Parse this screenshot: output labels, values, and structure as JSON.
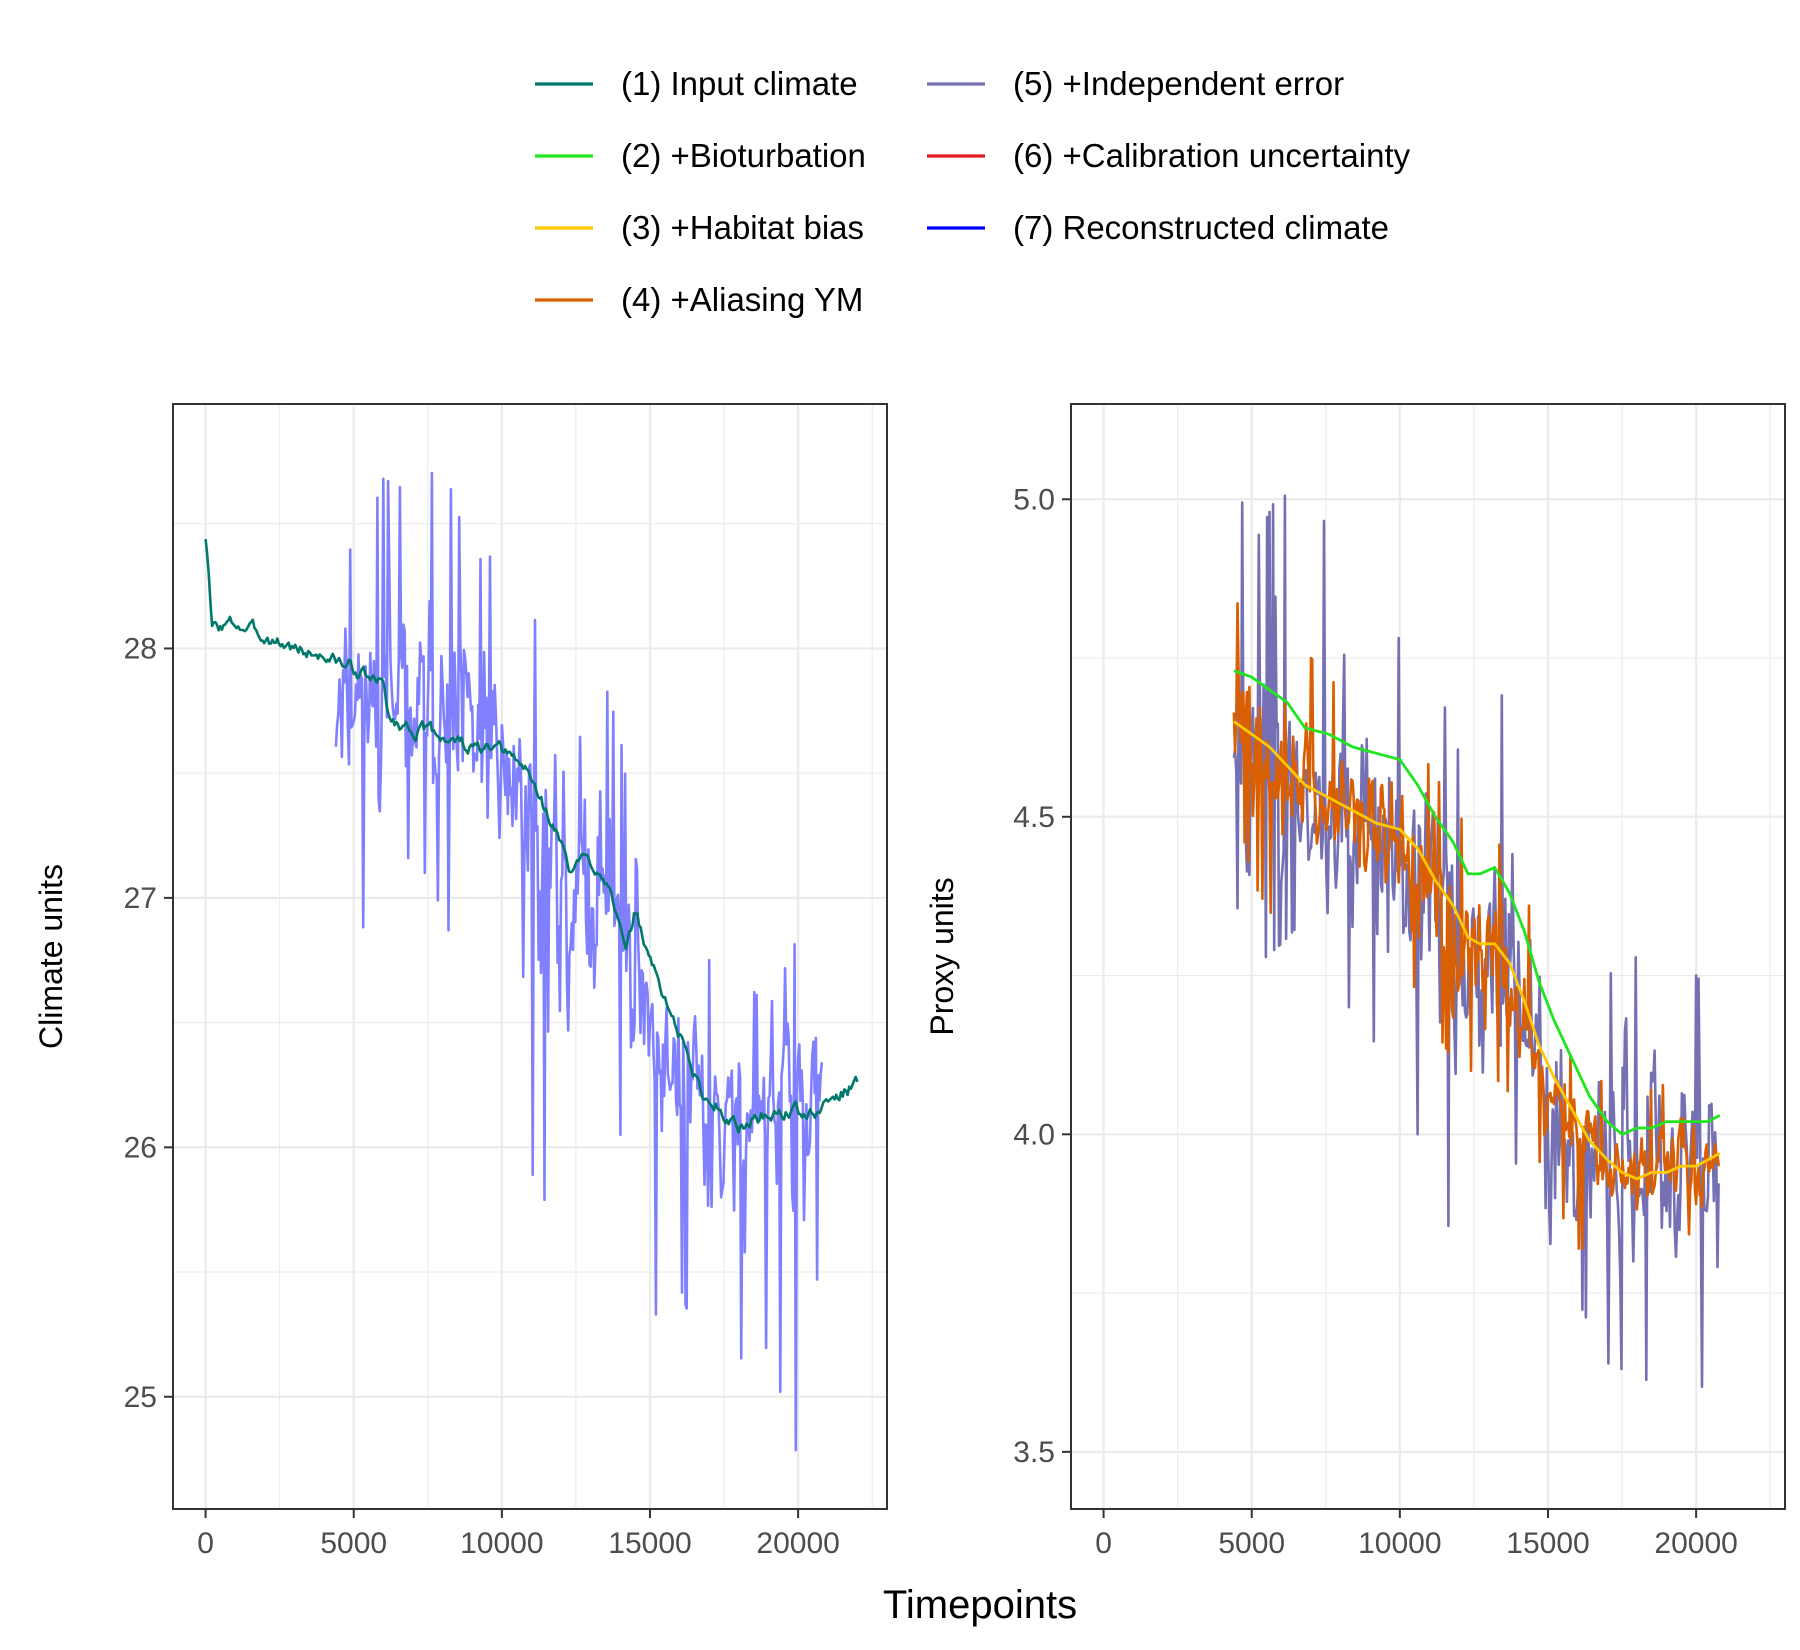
{
  "figure": {
    "shared_xlabel": "Timepoints"
  },
  "legend": {
    "placement": "top",
    "items": [
      {
        "label": "(1) Input climate",
        "color": "#00796B"
      },
      {
        "label": "(2) +Bioturbation",
        "color": "#1FE61F"
      },
      {
        "label": "(3) +Habitat bias",
        "color": "#FFC800"
      },
      {
        "label": "(4) +Aliasing YM",
        "color": "#D95F02"
      },
      {
        "label": "(5) +Independent error",
        "color": "#7570B3"
      },
      {
        "label": "(6) +Calibration uncertainty",
        "color": "#E31A1C"
      },
      {
        "label": "(7) Reconstructed climate",
        "color": "#0000FF"
      }
    ]
  },
  "chart_data": [
    {
      "type": "line",
      "title": "",
      "xlabel": "",
      "ylabel": "Climate units",
      "xlim": [
        -1100,
        23000
      ],
      "ylim": [
        24.55,
        28.98
      ],
      "xticks": [
        0,
        5000,
        10000,
        15000,
        20000
      ],
      "xtick_labels": [
        "0",
        "5000",
        "10000",
        "15000",
        "20000"
      ],
      "yticks": [
        25,
        26,
        27,
        28
      ],
      "ytick_labels": [
        "25",
        "26",
        "27",
        "28"
      ],
      "grid": true,
      "series": [
        {
          "name": "(5) +Independent error",
          "color": "#8080FF",
          "noise": true,
          "seed": 11,
          "x": [
            4400,
            5000,
            6000,
            7000,
            8000,
            9000,
            10000,
            11000,
            12000,
            13000,
            14000,
            15000,
            16000,
            17000,
            18000,
            19000,
            20000,
            20800
          ],
          "y": [
            27.9,
            27.88,
            27.75,
            27.7,
            27.65,
            27.58,
            27.55,
            27.35,
            27.1,
            27.1,
            26.95,
            26.5,
            26.3,
            26.15,
            26.12,
            26.15,
            26.15,
            26.2
          ],
          "ymin": [
            27.15,
            26.85,
            26.95,
            27.2,
            26.95,
            26.55,
            26.7,
            25.9,
            25.65,
            26.1,
            26.05,
            25.3,
            25.45,
            25.05,
            25.15,
            25.2,
            24.75,
            25.65
          ],
          "ymax": [
            28.78,
            28.3,
            28.68,
            28.62,
            28.75,
            28.35,
            28.38,
            28.15,
            27.85,
            28.05,
            27.65,
            26.7,
            26.85,
            26.75,
            26.7,
            26.55,
            26.85,
            26.75
          ]
        },
        {
          "name": "(1) Input climate",
          "color": "#00796B",
          "noise": true,
          "seed": 3,
          "amp": 0.02,
          "x": [
            0,
            80,
            200,
            1000,
            2000,
            3000,
            4000,
            5000,
            5500,
            6000,
            6200,
            6400,
            7000,
            8000,
            9000,
            10000,
            10800,
            11300,
            12000,
            12300,
            12700,
            13300,
            13700,
            14200,
            14500,
            15000,
            16000,
            16800,
            17300,
            17700,
            18000,
            18500,
            19000,
            20000,
            20500,
            21000,
            21500,
            22000
          ],
          "y": [
            28.45,
            28.35,
            28.08,
            28.1,
            28.05,
            28.0,
            27.97,
            27.92,
            27.88,
            27.85,
            27.72,
            27.7,
            27.68,
            27.65,
            27.6,
            27.58,
            27.52,
            27.4,
            27.22,
            27.1,
            27.15,
            27.12,
            27.05,
            26.75,
            26.95,
            26.75,
            26.45,
            26.2,
            26.17,
            26.12,
            26.07,
            26.12,
            26.13,
            26.15,
            26.12,
            26.18,
            26.22,
            26.26
          ]
        }
      ]
    },
    {
      "type": "line",
      "title": "",
      "xlabel": "",
      "ylabel": "Proxy units",
      "xlim": [
        -1100,
        23000
      ],
      "ylim": [
        3.41,
        5.15
      ],
      "xticks": [
        0,
        5000,
        10000,
        15000,
        20000
      ],
      "xtick_labels": [
        "0",
        "5000",
        "10000",
        "15000",
        "20000"
      ],
      "yticks": [
        3.5,
        4.0,
        4.5,
        5.0
      ],
      "ytick_labels": [
        "3.5",
        "4.0",
        "4.5",
        "5.0"
      ],
      "grid": true,
      "series": [
        {
          "name": "(5) +Independent error",
          "color": "#7570B3",
          "noise": true,
          "seed": 23,
          "x": [
            4400,
            5000,
            6000,
            7000,
            8000,
            9000,
            10000,
            11000,
            12000,
            13000,
            14000,
            15000,
            16000,
            17000,
            18000,
            19000,
            20000,
            20800
          ],
          "y": [
            4.62,
            4.6,
            4.55,
            4.5,
            4.5,
            4.45,
            4.45,
            4.35,
            4.25,
            4.25,
            4.2,
            4.05,
            3.95,
            3.95,
            3.95,
            3.97,
            3.95,
            3.97
          ],
          "ymin": [
            4.38,
            4.26,
            4.3,
            4.35,
            4.22,
            4.15,
            4.12,
            3.92,
            3.82,
            4.0,
            3.95,
            3.72,
            3.74,
            3.64,
            3.62,
            3.6,
            3.53,
            3.82
          ],
          "ymax": [
            5.06,
            4.92,
            5.02,
            4.9,
            5.05,
            4.82,
            4.78,
            4.75,
            4.6,
            4.7,
            4.68,
            4.08,
            4.2,
            4.25,
            4.28,
            4.22,
            4.25,
            4.2
          ]
        },
        {
          "name": "(4) +Aliasing YM",
          "color": "#D95F02",
          "noise": true,
          "seed": 41,
          "x": [
            4400,
            5000,
            6000,
            7000,
            8000,
            9000,
            10000,
            11000,
            12000,
            13000,
            14000,
            15000,
            16000,
            17000,
            18000,
            19000,
            20000,
            20800
          ],
          "y": [
            4.64,
            4.6,
            4.58,
            4.54,
            4.52,
            4.48,
            4.45,
            4.38,
            4.3,
            4.28,
            4.22,
            4.08,
            3.98,
            3.95,
            3.93,
            3.95,
            3.95,
            3.97
          ],
          "ymin": [
            4.55,
            4.4,
            4.32,
            4.38,
            4.35,
            4.32,
            4.28,
            4.18,
            4.1,
            4.1,
            4.05,
            3.92,
            3.82,
            3.82,
            3.83,
            3.85,
            3.84,
            3.88
          ],
          "ymax": [
            4.84,
            4.82,
            4.82,
            4.75,
            4.7,
            4.68,
            4.65,
            4.58,
            4.5,
            4.46,
            4.45,
            4.2,
            4.1,
            4.08,
            4.06,
            4.08,
            4.08,
            4.08
          ]
        },
        {
          "name": "(2) +Bioturbation",
          "color": "#1FE61F",
          "noise": false,
          "x": [
            4400,
            5000,
            5600,
            6200,
            6800,
            7600,
            8400,
            9200,
            10000,
            10600,
            11200,
            11800,
            12300,
            12700,
            13200,
            13700,
            14200,
            14700,
            15200,
            15800,
            16400,
            17000,
            17500,
            18000,
            18500,
            19000,
            19500,
            20000,
            20400,
            20800
          ],
          "y": [
            4.73,
            4.72,
            4.7,
            4.68,
            4.64,
            4.63,
            4.61,
            4.6,
            4.59,
            4.55,
            4.5,
            4.46,
            4.41,
            4.41,
            4.42,
            4.38,
            4.32,
            4.24,
            4.18,
            4.12,
            4.06,
            4.02,
            4.0,
            4.01,
            4.01,
            4.02,
            4.02,
            4.02,
            4.02,
            4.03
          ]
        },
        {
          "name": "(3) +Habitat bias",
          "color": "#FFC800",
          "noise": false,
          "x": [
            4400,
            5000,
            5600,
            6200,
            6800,
            7600,
            8400,
            9200,
            10000,
            10600,
            11200,
            11800,
            12300,
            12700,
            13200,
            13700,
            14200,
            14700,
            15200,
            15800,
            16400,
            17000,
            17500,
            18000,
            18500,
            19000,
            19500,
            20000,
            20400,
            20800
          ],
          "y": [
            4.65,
            4.63,
            4.61,
            4.58,
            4.55,
            4.53,
            4.51,
            4.49,
            4.48,
            4.45,
            4.4,
            4.36,
            4.31,
            4.3,
            4.3,
            4.27,
            4.21,
            4.14,
            4.09,
            4.04,
            3.99,
            3.96,
            3.94,
            3.93,
            3.94,
            3.94,
            3.95,
            3.95,
            3.96,
            3.97
          ]
        }
      ]
    }
  ]
}
